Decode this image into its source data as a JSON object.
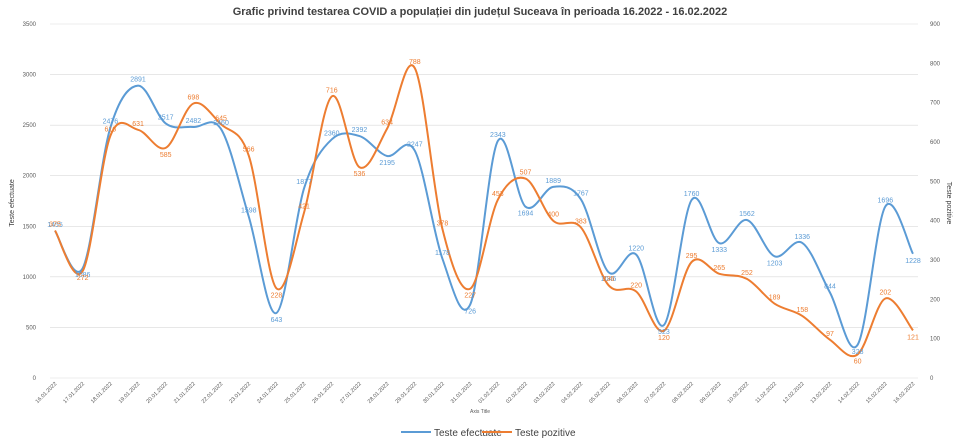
{
  "chart_data": {
    "type": "line",
    "title": "Grafic privind testarea COVID a populației din județul Suceava în perioada 16.2022 - 16.02.2022",
    "xlabel": "Axis Title",
    "ylabel": "Teste efectuate",
    "y2label": "Teste pozitive",
    "categories": [
      "16.01.2022",
      "17.01.2022",
      "18.01.2022",
      "19.01.2022",
      "20.01.2022",
      "21.01.2022",
      "22.01.2022",
      "23.01.2022",
      "24.01.2022",
      "25.01.2022",
      "26.01.2022",
      "27.01.2022",
      "28.01.2022",
      "29.01.2022",
      "30.01.2022",
      "31.01.2022",
      "01.02.2022",
      "02.02.2022",
      "03.02.2022",
      "04.02.2022",
      "05.02.2022",
      "06.02.2022",
      "07.02.2022",
      "08.02.2022",
      "09.02.2022",
      "10.02.2022",
      "11.02.2022",
      "12.02.2022",
      "13.02.2022",
      "14.02.2022",
      "15.02.2022",
      "16.02.2022"
    ],
    "ylim": [
      0,
      3500
    ],
    "y2lim": [
      0,
      900
    ],
    "yticks": [
      "0",
      "500",
      "1000",
      "1500",
      "2000",
      "2500",
      "3000",
      "3500"
    ],
    "y2ticks": [
      "0",
      "100",
      "200",
      "300",
      "400",
      "500",
      "600",
      "700",
      "800",
      "900"
    ],
    "grid": true,
    "legend": "bottom",
    "series": [
      {
        "name": "Teste efectuate",
        "axis": "left",
        "color": "#5b9bd5",
        "values": [
          1455,
          1086,
          2476,
          2891,
          2517,
          2482,
          2460,
          1598,
          643,
          1877,
          2360,
          2392,
          2195,
          2247,
          1178,
          726,
          2343,
          1694,
          1889,
          1767,
          1046,
          1220,
          523,
          1760,
          1333,
          1562,
          1203,
          1336,
          844,
          328,
          1696,
          1228
        ]
      },
      {
        "name": "Teste pozitive",
        "axis": "right",
        "color": "#ed7d31",
        "values": [
          375,
          272,
          616,
          631,
          585,
          698,
          645,
          566,
          228,
          421,
          716,
          536,
          634,
          788,
          378,
          227,
          453,
          507,
          400,
          383,
          236,
          220,
          120,
          295,
          265,
          252,
          189,
          158,
          97,
          60,
          202,
          121
        ]
      }
    ]
  }
}
